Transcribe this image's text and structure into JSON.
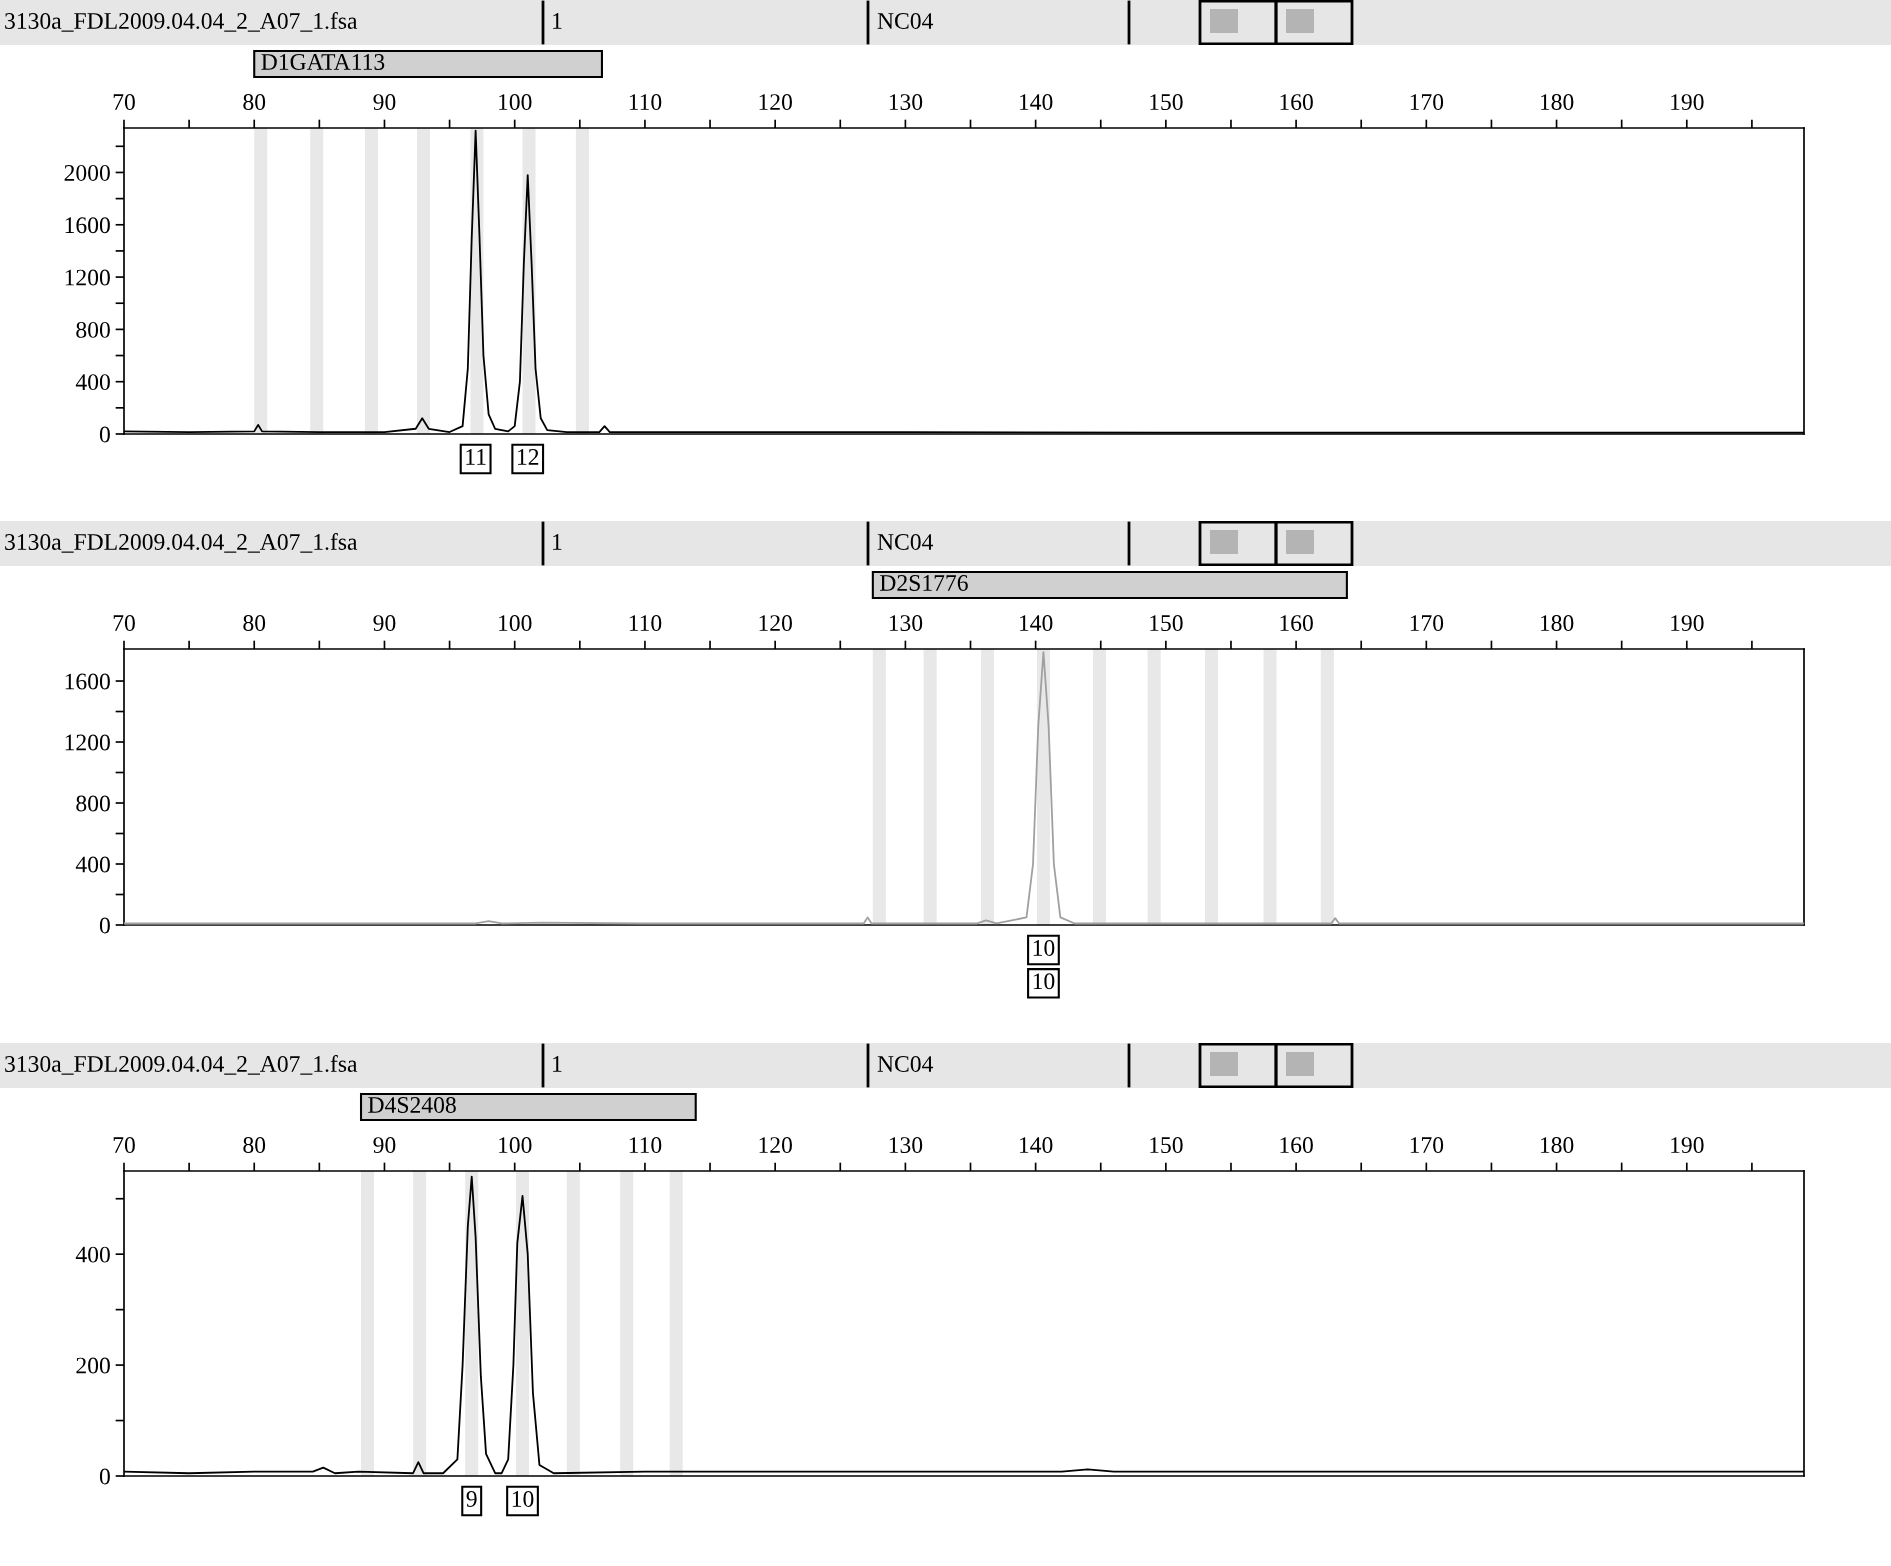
{
  "chart_data": [
    {
      "type": "line",
      "annotations": [
        "3130a_FDL2009.04.04_2_A07_1.fsa",
        "1",
        "NC04",
        "D1GATA113",
        {
          "text": "11",
          "x": 97.0,
          "y": 0
        },
        {
          "text": "12",
          "x": 101.0,
          "y": 0
        }
      ],
      "xlim": [
        70,
        199
      ],
      "xticks": [
        70,
        {
          "value": 75,
          "label": null
        },
        80,
        {
          "value": 85,
          "label": null
        },
        90,
        {
          "value": 95,
          "label": null
        },
        100,
        {
          "value": 105,
          "label": null
        },
        110,
        {
          "value": 115,
          "label": null
        },
        120,
        {
          "value": 125,
          "label": null
        },
        130,
        {
          "value": 135,
          "label": null
        },
        140,
        {
          "value": 145,
          "label": null
        },
        150,
        {
          "value": 155,
          "label": null
        },
        160,
        {
          "value": 165,
          "label": null
        },
        170,
        {
          "value": 175,
          "label": null
        },
        180,
        {
          "value": 185,
          "label": null
        },
        190,
        {
          "value": 195,
          "label": null
        }
      ],
      "ylim": [
        0,
        2340
      ],
      "yticks": [
        0,
        {
          "value": 200,
          "label": null
        },
        400,
        {
          "value": 600,
          "label": null
        },
        800,
        {
          "value": 1000,
          "label": null
        },
        1200,
        {
          "value": 1400,
          "label": null
        },
        1600,
        {
          "value": 1800,
          "label": null
        },
        2000,
        {
          "value": 2200,
          "label": null
        }
      ],
      "bands": [
        {
          "axis": "x",
          "from": 80.0,
          "to": 81.0,
          "color": "#e8e8e8"
        },
        {
          "axis": "x",
          "from": 84.3,
          "to": 85.3,
          "color": "#e8e8e8"
        },
        {
          "axis": "x",
          "from": 88.5,
          "to": 89.5,
          "color": "#e8e8e8"
        },
        {
          "axis": "x",
          "from": 92.5,
          "to": 93.5,
          "color": "#e8e8e8"
        },
        {
          "axis": "x",
          "from": 96.6,
          "to": 97.6,
          "color": "#e8e8e8"
        },
        {
          "axis": "x",
          "from": 100.6,
          "to": 101.6,
          "color": "#e8e8e8"
        },
        {
          "axis": "x",
          "from": 104.7,
          "to": 105.7,
          "color": "#e8e8e8"
        }
      ],
      "series": [
        {
          "color": "#000000",
          "x": [
            70,
            75,
            80,
            80.3,
            80.6,
            85,
            90,
            92.4,
            92.9,
            93.4,
            95,
            96.0,
            96.4,
            96.7,
            97.0,
            97.3,
            97.6,
            98.0,
            98.5,
            99.5,
            100.0,
            100.4,
            100.7,
            101.0,
            101.3,
            101.6,
            102.0,
            102.5,
            104,
            106.5,
            106.9,
            107.3,
            110,
            130,
            150,
            170,
            190,
            199
          ],
          "values": [
            20,
            15,
            20,
            70,
            20,
            15,
            15,
            40,
            120,
            40,
            15,
            60,
            500,
            1500,
            2320,
            1500,
            600,
            150,
            40,
            20,
            60,
            400,
            1300,
            1980,
            1300,
            500,
            120,
            30,
            15,
            15,
            60,
            15,
            15,
            15,
            10,
            10,
            10,
            10
          ]
        }
      ]
    },
    {
      "type": "line",
      "annotations": [
        "3130a_FDL2009.04.04_2_A07_1.fsa",
        "1",
        "NC04",
        "D2S1776",
        {
          "text": "10",
          "x": 140.6,
          "y": 0
        },
        {
          "text": "10",
          "x": 140.6,
          "y": 0
        }
      ],
      "xlim": [
        70,
        199
      ],
      "xticks": [
        70,
        {
          "value": 75,
          "label": null
        },
        80,
        {
          "value": 85,
          "label": null
        },
        90,
        {
          "value": 95,
          "label": null
        },
        100,
        {
          "value": 105,
          "label": null
        },
        110,
        {
          "value": 115,
          "label": null
        },
        120,
        {
          "value": 125,
          "label": null
        },
        130,
        {
          "value": 135,
          "label": null
        },
        140,
        {
          "value": 145,
          "label": null
        },
        150,
        {
          "value": 155,
          "label": null
        },
        160,
        {
          "value": 165,
          "label": null
        },
        170,
        {
          "value": 175,
          "label": null
        },
        180,
        {
          "value": 185,
          "label": null
        },
        190,
        {
          "value": 195,
          "label": null
        }
      ],
      "ylim": [
        0,
        1810
      ],
      "yticks": [
        0,
        {
          "value": 200,
          "label": null
        },
        400,
        {
          "value": 600,
          "label": null
        },
        800,
        {
          "value": 1000,
          "label": null
        },
        1200,
        {
          "value": 1400,
          "label": null
        },
        1600
      ],
      "bands": [
        {
          "axis": "x",
          "from": 127.5,
          "to": 128.5,
          "color": "#e8e8e8"
        },
        {
          "axis": "x",
          "from": 131.4,
          "to": 132.4,
          "color": "#e8e8e8"
        },
        {
          "axis": "x",
          "from": 135.8,
          "to": 136.8,
          "color": "#e8e8e8"
        },
        {
          "axis": "x",
          "from": 140.1,
          "to": 141.1,
          "color": "#e8e8e8"
        },
        {
          "axis": "x",
          "from": 144.4,
          "to": 145.4,
          "color": "#e8e8e8"
        },
        {
          "axis": "x",
          "from": 148.6,
          "to": 149.6,
          "color": "#e8e8e8"
        },
        {
          "axis": "x",
          "from": 153.0,
          "to": 154.0,
          "color": "#e8e8e8"
        },
        {
          "axis": "x",
          "from": 157.5,
          "to": 158.5,
          "color": "#e8e8e8"
        },
        {
          "axis": "x",
          "from": 161.9,
          "to": 162.9,
          "color": "#e8e8e8"
        }
      ],
      "series": [
        {
          "color": "#a0a0a0",
          "x": [
            70,
            90,
            97,
            98,
            99,
            102,
            110,
            120,
            126.8,
            127.1,
            127.4,
            132,
            135.5,
            136.2,
            137,
            139.3,
            139.8,
            140.2,
            140.6,
            141.0,
            141.4,
            141.9,
            143,
            150,
            162.7,
            163,
            163.3,
            170,
            190,
            199
          ],
          "values": [
            10,
            10,
            10,
            25,
            10,
            15,
            10,
            10,
            10,
            50,
            10,
            10,
            10,
            30,
            10,
            50,
            400,
            1300,
            1790,
            1300,
            400,
            50,
            10,
            10,
            10,
            45,
            10,
            10,
            10,
            10
          ]
        }
      ]
    },
    {
      "type": "line",
      "annotations": [
        "3130a_FDL2009.04.04_2_A07_1.fsa",
        "1",
        "NC04",
        "D4S2408",
        {
          "text": "9",
          "x": 96.7,
          "y": 0
        },
        {
          "text": "10",
          "x": 100.6,
          "y": 0
        }
      ],
      "xlim": [
        70,
        199
      ],
      "xticks": [
        70,
        {
          "value": 75,
          "label": null
        },
        80,
        {
          "value": 85,
          "label": null
        },
        90,
        {
          "value": 95,
          "label": null
        },
        100,
        {
          "value": 105,
          "label": null
        },
        110,
        {
          "value": 115,
          "label": null
        },
        120,
        {
          "value": 125,
          "label": null
        },
        130,
        {
          "value": 135,
          "label": null
        },
        140,
        {
          "value": 145,
          "label": null
        },
        150,
        {
          "value": 155,
          "label": null
        },
        160,
        {
          "value": 165,
          "label": null
        },
        170,
        {
          "value": 175,
          "label": null
        },
        180,
        {
          "value": 185,
          "label": null
        },
        190,
        {
          "value": 195,
          "label": null
        }
      ],
      "ylim": [
        0,
        550
      ],
      "yticks": [
        0,
        {
          "value": 100,
          "label": null
        },
        200,
        {
          "value": 300,
          "label": null
        },
        400,
        {
          "value": 500,
          "label": null
        }
      ],
      "bands": [
        {
          "axis": "x",
          "from": 88.2,
          "to": 89.2,
          "color": "#e8e8e8"
        },
        {
          "axis": "x",
          "from": 92.2,
          "to": 93.2,
          "color": "#e8e8e8"
        },
        {
          "axis": "x",
          "from": 96.2,
          "to": 97.2,
          "color": "#e8e8e8"
        },
        {
          "axis": "x",
          "from": 100.1,
          "to": 101.1,
          "color": "#e8e8e8"
        },
        {
          "axis": "x",
          "from": 104.0,
          "to": 105.0,
          "color": "#e8e8e8"
        },
        {
          "axis": "x",
          "from": 108.1,
          "to": 109.1,
          "color": "#e8e8e8"
        },
        {
          "axis": "x",
          "from": 111.9,
          "to": 112.9,
          "color": "#e8e8e8"
        }
      ],
      "series": [
        {
          "color": "#000000",
          "x": [
            70,
            75,
            80,
            84.5,
            85.3,
            86.2,
            88,
            92.2,
            92.6,
            93.0,
            94.5,
            95.6,
            96.0,
            96.4,
            96.7,
            97.0,
            97.4,
            97.8,
            98.5,
            99,
            99.5,
            99.9,
            100.2,
            100.6,
            101.0,
            101.4,
            101.9,
            103,
            110,
            130,
            142,
            144,
            146,
            160,
            180,
            199
          ],
          "values": [
            8,
            5,
            8,
            8,
            15,
            5,
            8,
            5,
            25,
            5,
            5,
            30,
            200,
            450,
            540,
            430,
            180,
            40,
            5,
            5,
            30,
            200,
            420,
            505,
            400,
            150,
            20,
            5,
            8,
            8,
            8,
            12,
            8,
            8,
            8,
            8
          ]
        }
      ]
    }
  ]
}
